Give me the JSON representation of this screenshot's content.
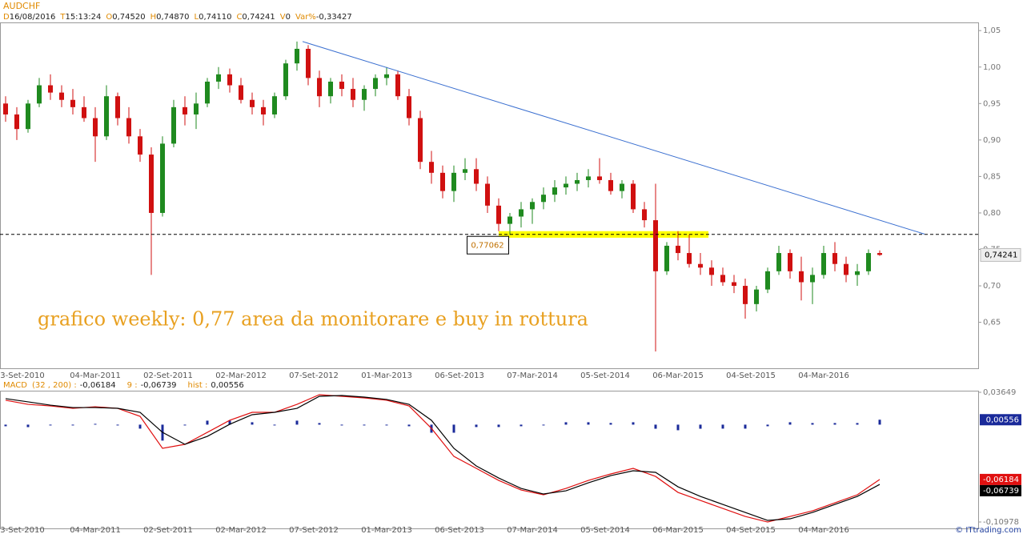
{
  "header": {
    "symbol": "AUDCHF",
    "fields": [
      {
        "key": "D",
        "value": "16/08/2016"
      },
      {
        "key": "T",
        "value": "15:13:24"
      },
      {
        "key": "O",
        "value": "0,74520"
      },
      {
        "key": "H",
        "value": "0,74870"
      },
      {
        "key": "L",
        "value": "0,74110"
      },
      {
        "key": "C",
        "value": "0,74241"
      },
      {
        "key": "V",
        "value": "0"
      },
      {
        "key": "Var%",
        "value": "-0,33427"
      }
    ]
  },
  "footer": "© ITtrading.com",
  "chart_data": [
    {
      "type": "candlestick",
      "annotation": "grafico weekly: 0,77 area da monitorare e buy in rottura",
      "x_labels": [
        "3-Set-2010",
        "04-Mar-2011",
        "02-Set-2011",
        "02-Mar-2012",
        "07-Set-2012",
        "01-Mar-2013",
        "06-Set-2013",
        "07-Mar-2014",
        "05-Set-2014",
        "06-Mar-2015",
        "04-Set-2015",
        "04-Mar-2016"
      ],
      "ylim": [
        0.587,
        1.059
      ],
      "yticks": [
        {
          "value": 1.05,
          "label": "1,05"
        },
        {
          "value": 1.0,
          "label": "1,00"
        },
        {
          "value": 0.95,
          "label": "0,95"
        },
        {
          "value": 0.9,
          "label": "0,90"
        },
        {
          "value": 0.85,
          "label": "0,85"
        },
        {
          "value": 0.8,
          "label": "0,80"
        },
        {
          "value": 0.75,
          "label": "0,75"
        },
        {
          "value": 0.7,
          "label": "0,70"
        },
        {
          "value": 0.65,
          "label": "0,65"
        }
      ],
      "up_color": "#1f8a1f",
      "down_color": "#d01010",
      "open": [
        0.95,
        0.935,
        0.915,
        0.95,
        0.975,
        0.965,
        0.955,
        0.945,
        0.93,
        0.905,
        0.96,
        0.93,
        0.905,
        0.88,
        0.8,
        0.895,
        0.945,
        0.935,
        0.95,
        0.98,
        0.99,
        0.975,
        0.955,
        0.945,
        0.935,
        0.96,
        1.005,
        1.025,
        0.985,
        0.96,
        0.98,
        0.97,
        0.955,
        0.97,
        0.985,
        0.99,
        0.96,
        0.93,
        0.87,
        0.855,
        0.83,
        0.855,
        0.86,
        0.84,
        0.81,
        0.785,
        0.795,
        0.805,
        0.815,
        0.825,
        0.835,
        0.84,
        0.845,
        0.85,
        0.845,
        0.83,
        0.84,
        0.805,
        0.79,
        0.72,
        0.755,
        0.745,
        0.73,
        0.725,
        0.715,
        0.705,
        0.7,
        0.675,
        0.695,
        0.72,
        0.745,
        0.72,
        0.705,
        0.715,
        0.745,
        0.73,
        0.715,
        0.72,
        0.745
      ],
      "high": [
        0.96,
        0.945,
        0.955,
        0.985,
        0.99,
        0.975,
        0.97,
        0.96,
        0.945,
        0.975,
        0.965,
        0.945,
        0.915,
        0.89,
        0.905,
        0.955,
        0.96,
        0.965,
        0.985,
        1.0,
        0.998,
        0.985,
        0.965,
        0.955,
        0.965,
        1.01,
        1.035,
        1.03,
        0.995,
        0.985,
        0.99,
        0.985,
        0.975,
        0.99,
        1.0,
        0.995,
        0.97,
        0.94,
        0.885,
        0.865,
        0.865,
        0.875,
        0.875,
        0.85,
        0.82,
        0.8,
        0.815,
        0.82,
        0.835,
        0.845,
        0.85,
        0.855,
        0.86,
        0.875,
        0.855,
        0.845,
        0.845,
        0.815,
        0.84,
        0.76,
        0.775,
        0.77,
        0.745,
        0.735,
        0.725,
        0.715,
        0.71,
        0.7,
        0.725,
        0.755,
        0.75,
        0.74,
        0.725,
        0.755,
        0.76,
        0.74,
        0.73,
        0.75,
        0.7487
      ],
      "low": [
        0.925,
        0.9,
        0.91,
        0.945,
        0.955,
        0.945,
        0.935,
        0.925,
        0.87,
        0.9,
        0.92,
        0.895,
        0.87,
        0.715,
        0.795,
        0.89,
        0.92,
        0.915,
        0.945,
        0.97,
        0.965,
        0.95,
        0.935,
        0.92,
        0.93,
        0.955,
        0.995,
        0.975,
        0.945,
        0.95,
        0.96,
        0.945,
        0.94,
        0.96,
        0.975,
        0.955,
        0.92,
        0.86,
        0.84,
        0.82,
        0.815,
        0.845,
        0.83,
        0.8,
        0.775,
        0.77,
        0.78,
        0.785,
        0.805,
        0.815,
        0.825,
        0.83,
        0.835,
        0.84,
        0.825,
        0.82,
        0.8,
        0.78,
        0.61,
        0.715,
        0.735,
        0.725,
        0.715,
        0.7,
        0.7,
        0.69,
        0.655,
        0.665,
        0.69,
        0.715,
        0.71,
        0.68,
        0.675,
        0.71,
        0.72,
        0.705,
        0.7,
        0.715,
        0.7411
      ],
      "close": [
        0.935,
        0.915,
        0.95,
        0.975,
        0.965,
        0.955,
        0.945,
        0.93,
        0.905,
        0.96,
        0.93,
        0.905,
        0.88,
        0.8,
        0.895,
        0.945,
        0.935,
        0.95,
        0.98,
        0.99,
        0.975,
        0.955,
        0.945,
        0.935,
        0.96,
        1.005,
        1.025,
        0.985,
        0.96,
        0.98,
        0.97,
        0.955,
        0.97,
        0.985,
        0.99,
        0.96,
        0.93,
        0.87,
        0.855,
        0.83,
        0.855,
        0.86,
        0.84,
        0.81,
        0.785,
        0.795,
        0.805,
        0.815,
        0.825,
        0.835,
        0.84,
        0.845,
        0.85,
        0.845,
        0.83,
        0.84,
        0.805,
        0.79,
        0.72,
        0.755,
        0.745,
        0.73,
        0.725,
        0.715,
        0.705,
        0.7,
        0.675,
        0.695,
        0.72,
        0.745,
        0.72,
        0.705,
        0.715,
        0.745,
        0.73,
        0.715,
        0.72,
        0.745,
        0.74241
      ],
      "level": {
        "value": 0.77062,
        "label": "0,77062"
      },
      "zone": {
        "values": [
          0.766,
          0.775
        ],
        "color": "#ffff00"
      },
      "trendline": {
        "values": [
          1.035,
          0.771
        ],
        "color": "#3a6fd0"
      }
    },
    {
      "type": "macd",
      "name": "MACD",
      "params": "(32 , 200) :",
      "macd_label": "-0,06184",
      "signal_name": "9 :",
      "signal_label": "-0,06739",
      "hist_name": "hist :",
      "hist_label": "0,00556",
      "ylim": [
        -0.10978,
        0.03649
      ],
      "yticks": [
        {
          "value": 0.03649,
          "label": "0,03649"
        },
        {
          "value": -0.10978,
          "label": "-0,10978"
        }
      ],
      "series": [
        {
          "name": "MACD",
          "color": "#e01010",
          "values": [
            0.0275,
            0.0229,
            0.0211,
            0.0184,
            0.0202,
            0.0184,
            0.0094,
            -0.0267,
            -0.0222,
            -0.0087,
            0.0049,
            0.0139,
            0.0139,
            0.0229,
            0.0338,
            0.032,
            0.0302,
            0.0275,
            0.0211,
            -0.0042,
            -0.0358,
            -0.0493,
            -0.0629,
            -0.0737,
            -0.0791,
            -0.0719,
            -0.0629,
            -0.0556,
            -0.0493,
            -0.0584,
            -0.0764,
            -0.0855,
            -0.0945,
            -0.1035,
            -0.1098,
            -0.1035,
            -0.0972,
            -0.0882,
            -0.0791,
            -0.06184
          ]
        },
        {
          "name": "Signal",
          "color": "#000000",
          "values": [
            0.0293,
            0.0257,
            0.022,
            0.0193,
            0.0193,
            0.0184,
            0.0139,
            -0.0087,
            -0.0222,
            -0.0132,
            0.0004,
            0.0112,
            0.0139,
            0.0184,
            0.032,
            0.0329,
            0.0311,
            0.0284,
            0.0229,
            0.0049,
            -0.0267,
            -0.0466,
            -0.0602,
            -0.0719,
            -0.0782,
            -0.0746,
            -0.0656,
            -0.0575,
            -0.052,
            -0.0538,
            -0.0701,
            -0.0809,
            -0.09,
            -0.099,
            -0.108,
            -0.1062,
            -0.099,
            -0.09,
            -0.0809,
            -0.06739
          ]
        }
      ],
      "hist": {
        "color": "#1a2a9a",
        "values": [
          -0.0018,
          -0.0028,
          -0.0009,
          -0.0009,
          0.0009,
          0,
          -0.0045,
          -0.018,
          0,
          0.0045,
          0.0045,
          0.0027,
          0,
          0.0045,
          0.0018,
          -0.0009,
          -0.0009,
          -0.0009,
          -0.0018,
          -0.0091,
          -0.0091,
          -0.0027,
          -0.0027,
          -0.0018,
          -0.0009,
          0.0027,
          0.0027,
          0.0019,
          0.0027,
          -0.0046,
          -0.0063,
          -0.0046,
          -0.0045,
          -0.0045,
          -0.0018,
          0.0027,
          0.0018,
          0.0018,
          0.0018,
          0.00556
        ]
      }
    }
  ]
}
